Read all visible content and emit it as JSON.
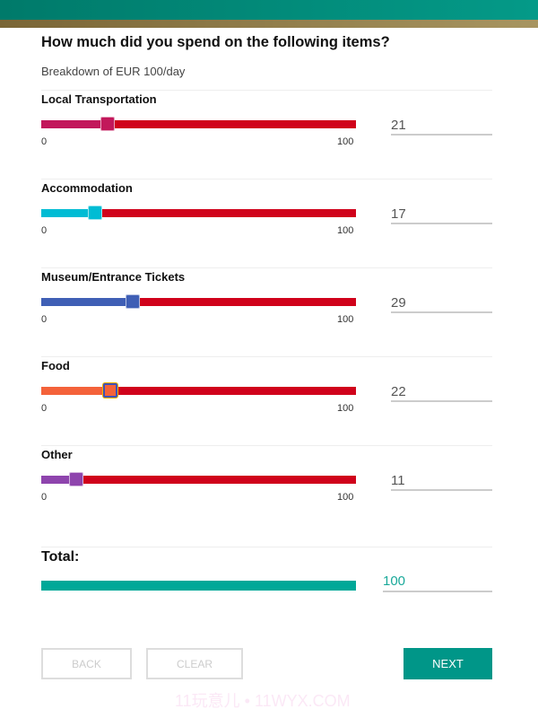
{
  "header": {
    "title": "How much did you spend on the following items?",
    "subtitle": "Breakdown of EUR 100/day"
  },
  "track_color": "#d0021b",
  "items": [
    {
      "label": "Local Transportation",
      "value": 21,
      "min": "0",
      "max": "100",
      "color": "#c2185b",
      "focused": false
    },
    {
      "label": "Accommodation",
      "value": 17,
      "min": "0",
      "max": "100",
      "color": "#00bcd4",
      "focused": false
    },
    {
      "label": "Museum/Entrance Tickets",
      "value": 29,
      "min": "0",
      "max": "100",
      "color": "#3f5fb5",
      "focused": false
    },
    {
      "label": "Food",
      "value": 22,
      "min": "0",
      "max": "100",
      "color": "#f4623a",
      "focused": true
    },
    {
      "label": "Other",
      "value": 11,
      "min": "0",
      "max": "100",
      "color": "#8e44ad",
      "focused": false
    }
  ],
  "total": {
    "label": "Total:",
    "value": "100",
    "color": "#00a898"
  },
  "buttons": {
    "back": "BACK",
    "clear": "CLEAR",
    "next": "NEXT"
  },
  "watermark": "11玩意儿 • 11WYX.COM"
}
